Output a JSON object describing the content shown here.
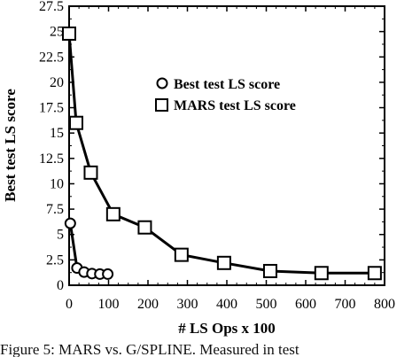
{
  "chart_data": {
    "type": "scatter",
    "title": "",
    "xlabel": "# LS Ops x 100",
    "ylabel": "Best test LS score",
    "xlim": [
      0,
      800
    ],
    "ylim": [
      0,
      27.5
    ],
    "xticks": [
      "0",
      "100",
      "200",
      "300",
      "400",
      "500",
      "600",
      "700",
      "800"
    ],
    "yticks": [
      "0",
      "2.5",
      "5",
      "7.5",
      "10",
      "12.5",
      "15",
      "17.5",
      "20",
      "22.5",
      "25",
      "27.5"
    ],
    "legend_position": "center-right",
    "grid": false,
    "series": [
      {
        "name": "Best test LS score",
        "marker": "circle",
        "connected": true,
        "x": [
          3,
          20,
          38,
          58,
          78,
          98
        ],
        "y": [
          6.1,
          1.7,
          1.3,
          1.15,
          1.1,
          1.1
        ]
      },
      {
        "name": "MARS test LS score",
        "marker": "square",
        "connected": true,
        "x": [
          0,
          18,
          55,
          112,
          192,
          285,
          393,
          510,
          640,
          775
        ],
        "y": [
          24.8,
          16.0,
          11.1,
          7.0,
          5.7,
          3.0,
          2.2,
          1.4,
          1.2,
          1.2
        ]
      }
    ]
  },
  "caption": "Figure 5: MARS vs. G/SPLINE. Measured in test"
}
